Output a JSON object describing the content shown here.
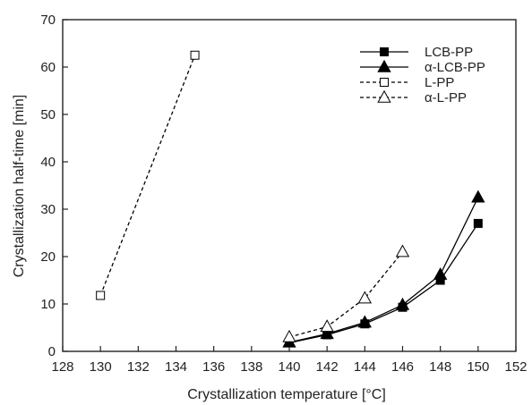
{
  "chart_data": {
    "type": "line",
    "xlabel": "Crystallization temperature [°C]",
    "ylabel": "Crystallization half-time [min]",
    "xlim": [
      128,
      152
    ],
    "ylim": [
      0,
      70
    ],
    "xticks": [
      128,
      130,
      132,
      134,
      136,
      138,
      140,
      142,
      144,
      146,
      148,
      150,
      152
    ],
    "yticks": [
      0,
      10,
      20,
      30,
      40,
      50,
      60,
      70
    ],
    "grid": false,
    "legend_position": "top-right",
    "series": [
      {
        "name": "LCB-PP",
        "marker": "square",
        "filled": true,
        "line": "solid",
        "color": "#000000",
        "x": [
          140,
          142,
          144,
          146,
          148,
          150
        ],
        "y": [
          1.8,
          3.5,
          5.8,
          9.3,
          15.0,
          27.0
        ]
      },
      {
        "name": "α-LCB-PP",
        "marker": "triangle",
        "filled": true,
        "line": "solid",
        "color": "#000000",
        "x": [
          140,
          142,
          144,
          146,
          148,
          150
        ],
        "y": [
          1.9,
          3.7,
          6.1,
          9.8,
          16.2,
          32.5
        ]
      },
      {
        "name": "L-PP",
        "marker": "square",
        "filled": false,
        "line": "dashed",
        "color": "#000000",
        "x": [
          130,
          135
        ],
        "y": [
          11.8,
          62.5
        ]
      },
      {
        "name": "α-L-PP",
        "marker": "triangle",
        "filled": false,
        "line": "dashed",
        "color": "#000000",
        "x": [
          140,
          142,
          144,
          146
        ],
        "y": [
          3.0,
          5.2,
          11.2,
          21.0
        ]
      }
    ]
  }
}
